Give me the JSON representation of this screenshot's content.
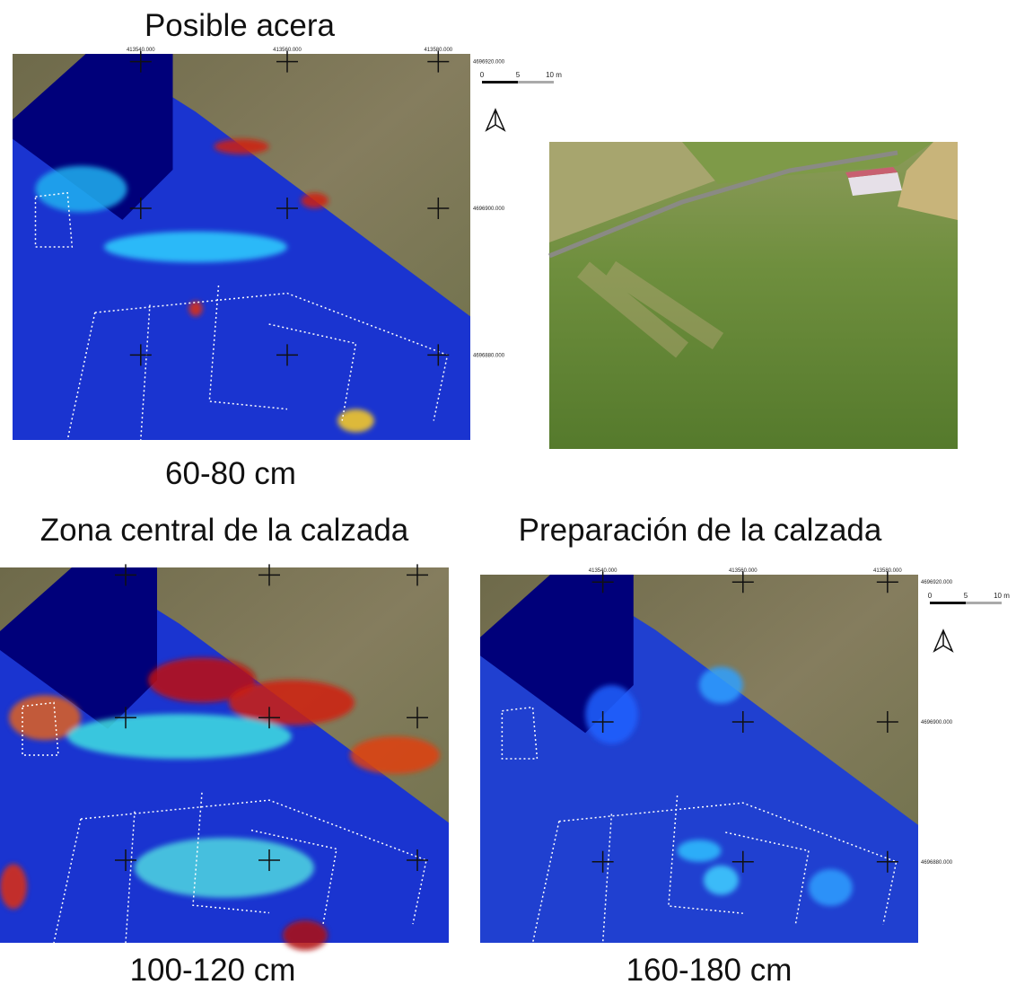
{
  "panels": [
    {
      "title": "Posible acera",
      "depth": "60-80 cm",
      "x_coords": [
        "413540.000",
        "413560.000",
        "413580.000"
      ],
      "y_coords": [
        "4696920.000",
        "4696900.000",
        "4696880.000"
      ],
      "scale_labels": [
        "0",
        "5",
        "10 m"
      ]
    },
    {
      "title": "Zona central de la calzada",
      "depth": "100-120 cm"
    },
    {
      "title": "Preparación de la calzada",
      "depth": "160-180 cm",
      "x_coords": [
        "413540.000",
        "413560.000",
        "413580.000"
      ],
      "y_coords": [
        "4696920.000",
        "4696900.000",
        "4696880.000"
      ],
      "scale_labels": [
        "0",
        "5",
        "10 m"
      ]
    }
  ]
}
